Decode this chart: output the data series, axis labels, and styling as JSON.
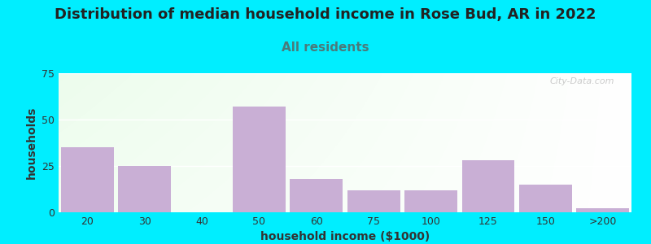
{
  "title": "Distribution of median household income in Rose Bud, AR in 2022",
  "subtitle": "All residents",
  "xlabel": "household income ($1000)",
  "ylabel": "households",
  "categories": [
    "20",
    "30",
    "40",
    "50",
    "60",
    "75",
    "100",
    "125",
    "150",
    ">200"
  ],
  "values": [
    35,
    25,
    0,
    57,
    18,
    12,
    12,
    28,
    15,
    2
  ],
  "bar_color": "#c9afd5",
  "background_outer": "#00EEFF",
  "background_plot_left": "#c8e6c9",
  "background_plot_right": "#f0fff0",
  "ylim": [
    0,
    75
  ],
  "yticks": [
    0,
    25,
    50,
    75
  ],
  "title_fontsize": 13,
  "subtitle_fontsize": 11,
  "subtitle_color": "#4a7a7a",
  "axis_label_fontsize": 10,
  "tick_fontsize": 9,
  "watermark": "City-Data.com"
}
